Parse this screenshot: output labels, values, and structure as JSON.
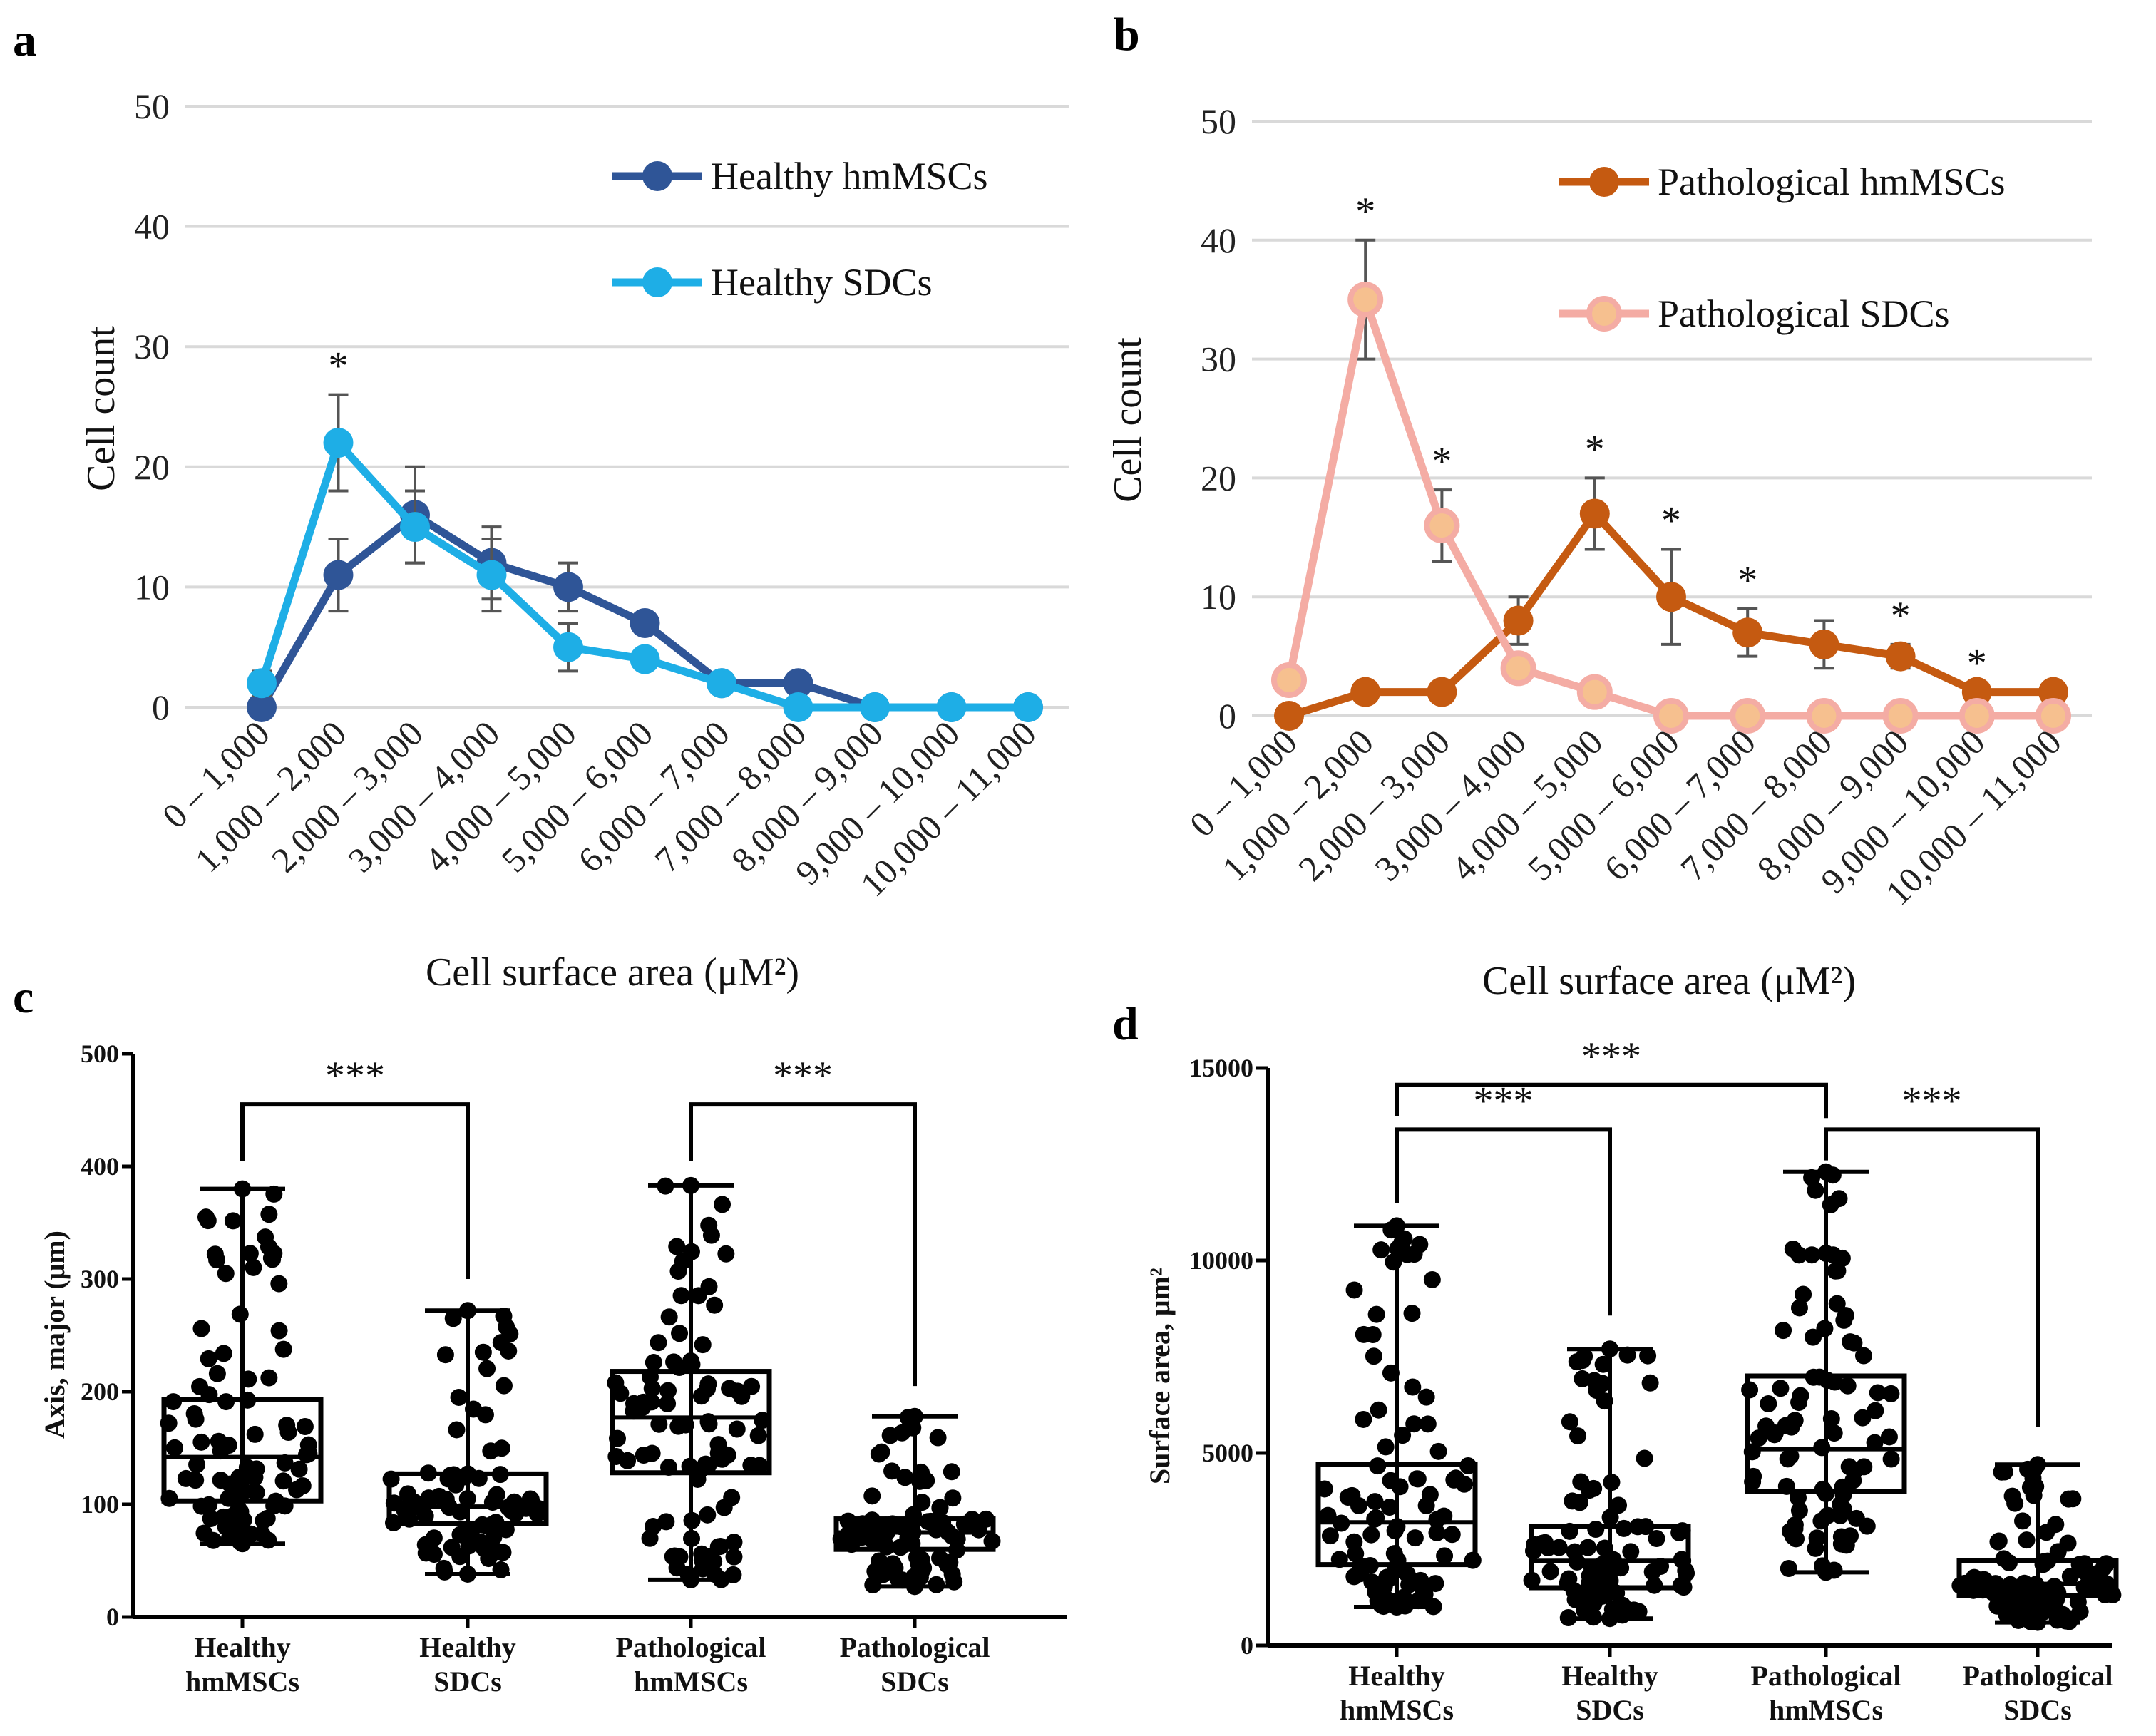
{
  "chart_data": [
    {
      "panel_label": "a",
      "type": "line",
      "categories": [
        "0 – 1,000",
        "1,000 – 2,000",
        "2,000 – 3,000",
        "3,000 – 4,000",
        "4,000 – 5,000",
        "5,000 – 6,000",
        "6,000 – 7,000",
        "7,000 – 8,000",
        "8,000 – 9,000",
        "9,000 – 10,000",
        "10,000 – 11,000"
      ],
      "xlabel": "Cell surface area (μM²)",
      "ylabel": "Cell count",
      "ylim": [
        0,
        50
      ],
      "yticks": [
        0,
        10,
        20,
        30,
        40,
        50
      ],
      "grid": true,
      "legend": "top-right",
      "series": [
        {
          "name": "Healthy hmMSCs",
          "color": "#2f5597",
          "values": [
            0,
            11,
            16,
            12,
            10,
            7,
            2,
            2,
            0,
            0,
            0
          ],
          "yerr": [
            0,
            3,
            4,
            3,
            2,
            0,
            0,
            0,
            0,
            0,
            0
          ]
        },
        {
          "name": "Healthy SDCs",
          "color": "#1eaee6",
          "values": [
            2,
            22,
            15,
            11,
            5,
            4,
            2,
            0,
            0,
            0,
            0
          ],
          "yerr": [
            1,
            4,
            3,
            3,
            2,
            0,
            0,
            0,
            0,
            0,
            0
          ]
        }
      ],
      "significance": [
        {
          "category_index": 1,
          "label": "*"
        }
      ]
    },
    {
      "panel_label": "b",
      "type": "line",
      "categories": [
        "0 – 1,000",
        "1,000 – 2,000",
        "2,000 – 3,000",
        "3,000 – 4,000",
        "4,000 – 5,000",
        "5,000 – 6,000",
        "6,000 – 7,000",
        "7,000 – 8,000",
        "8,000 – 9,000",
        "9,000 – 10,000",
        "10,000 – 11,000"
      ],
      "xlabel": "Cell surface area (μM²)",
      "ylabel": "Cell count",
      "ylim": [
        0,
        50
      ],
      "yticks": [
        0,
        10,
        20,
        30,
        40,
        50
      ],
      "grid": true,
      "legend": "top-right",
      "series": [
        {
          "name": "Pathological hmMSCs",
          "color": "#c55a11",
          "values": [
            0,
            2,
            2,
            8,
            17,
            10,
            7,
            6,
            5,
            2,
            2
          ],
          "yerr": [
            0,
            0,
            0,
            2,
            3,
            4,
            2,
            2,
            1,
            0,
            0
          ]
        },
        {
          "name": "Pathological SDCs",
          "color": "#f4aca4",
          "marker_fill": "#f6c08f",
          "values": [
            3,
            35,
            16,
            4,
            2,
            0,
            0,
            0,
            0,
            0,
            0
          ],
          "yerr": [
            1,
            5,
            3,
            1,
            1,
            0,
            0,
            0,
            0,
            0,
            0
          ]
        }
      ],
      "significance": [
        {
          "category_index": 1,
          "label": "*"
        },
        {
          "category_index": 2,
          "label": "*"
        },
        {
          "category_index": 4,
          "label": "*"
        },
        {
          "category_index": 5,
          "label": "*"
        },
        {
          "category_index": 6,
          "label": "*"
        },
        {
          "category_index": 8,
          "label": "*"
        },
        {
          "category_index": 9,
          "label": "*"
        }
      ]
    },
    {
      "panel_label": "c",
      "type": "box",
      "categories": [
        [
          "Healthy",
          "hmMSCs"
        ],
        [
          "Healthy",
          "SDCs"
        ],
        [
          "Pathological",
          "hmMSCs"
        ],
        [
          "Pathological",
          "SDCs"
        ]
      ],
      "ylabel": "Axis, major (μm)",
      "ylim": [
        0,
        500
      ],
      "yticks": [
        0,
        100,
        200,
        300,
        400,
        500
      ],
      "boxes": [
        {
          "min": 65,
          "q1": 103,
          "median": 142,
          "q3": 193,
          "max": 380
        },
        {
          "min": 38,
          "q1": 83,
          "median": 98,
          "q3": 127,
          "max": 272
        },
        {
          "min": 33,
          "q1": 128,
          "median": 177,
          "q3": 218,
          "max": 383
        },
        {
          "min": 27,
          "q1": 60,
          "median": 75,
          "q3": 87,
          "max": 178
        }
      ],
      "comparisons": [
        {
          "from": 0,
          "to": 1,
          "label": "***"
        },
        {
          "from": 2,
          "to": 3,
          "label": "***"
        }
      ]
    },
    {
      "panel_label": "d",
      "type": "box",
      "categories": [
        [
          "Healthy",
          "hmMSCs"
        ],
        [
          "Healthy",
          "SDCs"
        ],
        [
          "Pathological",
          "hmMSCs"
        ],
        [
          "Pathological",
          "SDCs"
        ]
      ],
      "ylabel": "Surface area, μm²",
      "ylim": [
        0,
        15000
      ],
      "yticks": [
        0,
        5000,
        10000,
        15000
      ],
      "boxes": [
        {
          "min": 1000,
          "q1": 2100,
          "median": 3200,
          "q3": 4700,
          "max": 10900
        },
        {
          "min": 700,
          "q1": 1500,
          "median": 2200,
          "q3": 3100,
          "max": 7700
        },
        {
          "min": 1900,
          "q1": 4000,
          "median": 5100,
          "q3": 7000,
          "max": 12300
        },
        {
          "min": 600,
          "q1": 1300,
          "median": 1600,
          "q3": 2200,
          "max": 4700
        }
      ],
      "comparisons": [
        {
          "from": 0,
          "to": 2,
          "label": "***"
        },
        {
          "from": 0,
          "to": 1,
          "label": "***"
        },
        {
          "from": 2,
          "to": 3,
          "label": "***"
        }
      ]
    }
  ]
}
